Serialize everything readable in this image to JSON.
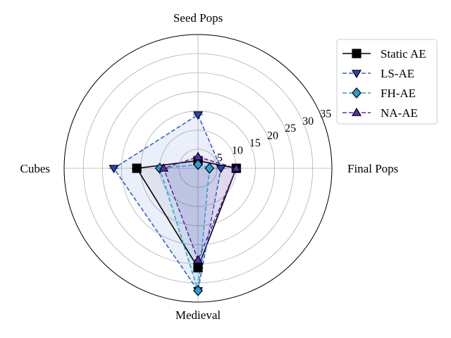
{
  "chart_data": {
    "type": "radar",
    "title": "",
    "axes": [
      "Seed Pops",
      "Final Pops",
      "Medieval",
      "Cubes"
    ],
    "radial_ticks": [
      "5",
      "10",
      "15",
      "20",
      "25",
      "30",
      "35"
    ],
    "rmax": 35,
    "grid": true,
    "legend_position": "upper-right",
    "series": [
      {
        "name": "Static AE",
        "values": [
          2,
          10,
          26,
          16
        ],
        "color": "#000000",
        "dash": "solid",
        "marker": "square",
        "fill_opacity": 0.05
      },
      {
        "name": "LS-AE",
        "values": [
          14,
          6,
          32,
          22
        ],
        "color": "#3060d0",
        "dash": "dashed",
        "marker": "triangle-down",
        "fill_opacity": 0.1
      },
      {
        "name": "FH-AE",
        "values": [
          1,
          3,
          32,
          10
        ],
        "color": "#2a9fd6",
        "dash": "dashed",
        "marker": "diamond",
        "fill_opacity": 0.1
      },
      {
        "name": "NA-AE",
        "values": [
          3,
          10,
          24,
          9
        ],
        "color": "#5a2bb0",
        "dash": "dashed",
        "marker": "triangle-up",
        "fill_opacity": 0.12
      }
    ]
  }
}
